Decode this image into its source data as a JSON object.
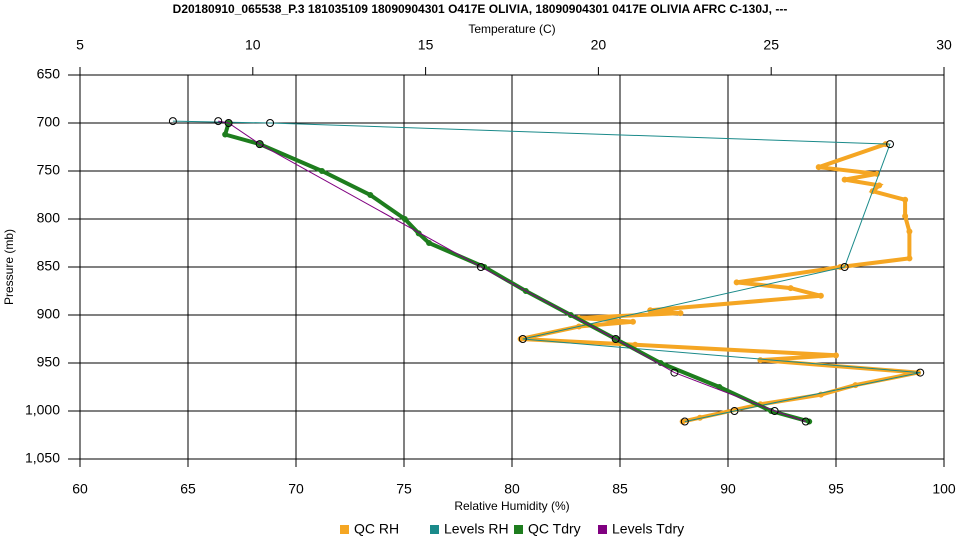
{
  "chart_data": {
    "type": "line",
    "title": "D20180910_065538_P.3 181035109 18090904301 O417E OLIVIA, 18090904301 0417E OLIVIA AFRC C-130J, ---",
    "x_label": "Relative Humidity (%)",
    "x2_label": "Temperature (C)",
    "y_label": "Pressure (mb)",
    "xlim": [
      60,
      100
    ],
    "xticks": [
      60,
      65,
      70,
      75,
      80,
      85,
      90,
      95,
      100
    ],
    "x2lim": [
      5,
      30
    ],
    "x2ticks": [
      5,
      10,
      15,
      20,
      25,
      30
    ],
    "ylim": [
      1050,
      650
    ],
    "yticks": [
      650,
      700,
      750,
      800,
      850,
      900,
      950,
      {
        "value": 1000,
        "label": "1,000"
      },
      {
        "value": 1050,
        "label": "1,050"
      }
    ],
    "grid": true,
    "legend": "bottom",
    "series": [
      {
        "name": "QC RH",
        "color": "#f5a623",
        "axis": "x",
        "marker": "dots",
        "x": [
          97.3,
          94.2,
          96.9,
          95.4,
          97.0,
          96.7,
          98.2,
          98.2,
          98.4,
          98.4,
          95.2,
          90.4,
          92.9,
          94.3,
          86.4,
          87.8,
          83.1,
          85.6,
          83.1,
          80.4,
          85.7,
          95.0,
          91.5,
          98.8,
          95.9,
          94.3,
          91.5,
          88.7,
          87.9
        ],
        "y": [
          722,
          746,
          753,
          759,
          765,
          771,
          780,
          797,
          813,
          841,
          850,
          866,
          872,
          880,
          895,
          898,
          903,
          907,
          912,
          925,
          931,
          942,
          947,
          960,
          973,
          983,
          993,
          1007,
          1011
        ]
      },
      {
        "name": "Levels RH",
        "color": "#1a8a8a",
        "axis": "x",
        "marker": "circles",
        "x": [
          64.3,
          68.8,
          97.5,
          95.4,
          80.5,
          98.9,
          90.3,
          88.0
        ],
        "y": [
          698,
          700,
          722,
          850,
          925,
          960,
          1000,
          1011
        ]
      },
      {
        "name": "QC Tdry",
        "color": "#1e7d1e",
        "axis": "x2",
        "marker": "dots",
        "x": [
          9.3,
          9.2,
          10.2,
          12.0,
          13.4,
          14.4,
          14.8,
          15.1,
          16.7,
          17.9,
          19.2,
          20.5,
          21.8,
          23.5,
          25.0,
          26.1
        ],
        "y": [
          700,
          712,
          722,
          750,
          775,
          800,
          815,
          825,
          850,
          875,
          900,
          925,
          950,
          975,
          1000,
          1011
        ]
      },
      {
        "name": "Levels Tdry",
        "color": "#800080",
        "axis": "x2",
        "marker": "circles",
        "x": [
          9.0,
          9.3,
          10.2,
          16.6,
          20.5,
          22.2,
          25.1,
          26.0
        ],
        "y": [
          698,
          700,
          722,
          850,
          925,
          960,
          1000,
          1011
        ]
      }
    ]
  }
}
